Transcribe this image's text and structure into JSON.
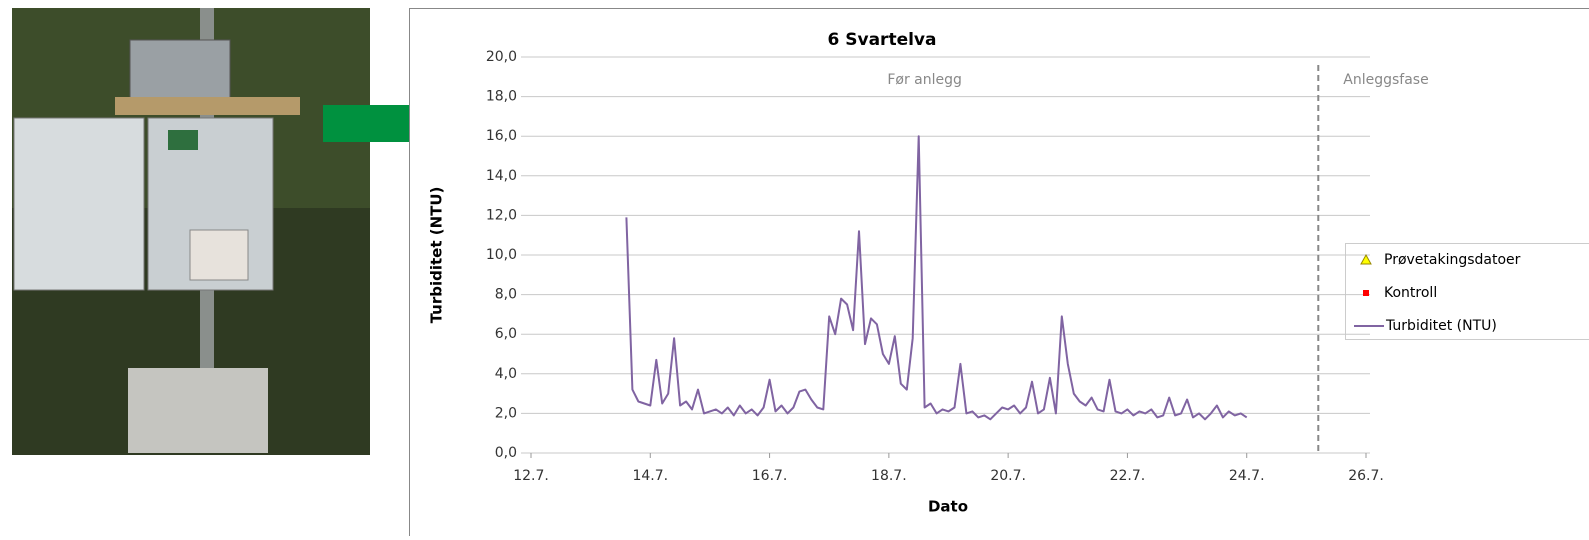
{
  "chart_data": {
    "type": "line",
    "title": "6 Svartelva",
    "xlabel": "Dato",
    "ylabel": "Turbiditet (NTU)",
    "xlim": [
      12,
      26
    ],
    "xticks": [
      {
        "value": 12,
        "label": "12.7."
      },
      {
        "value": 14,
        "label": "14.7."
      },
      {
        "value": 16,
        "label": "16.7."
      },
      {
        "value": 18,
        "label": "18.7."
      },
      {
        "value": 20,
        "label": "20.7."
      },
      {
        "value": 22,
        "label": "22.7."
      },
      {
        "value": 24,
        "label": "24.7."
      },
      {
        "value": 26,
        "label": "26.7."
      }
    ],
    "ylim": [
      0,
      20
    ],
    "yticks": [
      {
        "value": 0,
        "label": "0,0"
      },
      {
        "value": 2,
        "label": "2,0"
      },
      {
        "value": 4,
        "label": "4,0"
      },
      {
        "value": 6,
        "label": "6,0"
      },
      {
        "value": 8,
        "label": "8,0"
      },
      {
        "value": 10,
        "label": "10,0"
      },
      {
        "value": 12,
        "label": "12,0"
      },
      {
        "value": 14,
        "label": "14,0"
      },
      {
        "value": 16,
        "label": "16,0"
      },
      {
        "value": 18,
        "label": "18,0"
      },
      {
        "value": 20,
        "label": "20,0"
      }
    ],
    "grid": true,
    "phases": [
      "Før anlegg",
      "Anleggsfase"
    ],
    "phase_boundary": 25.2,
    "legend": "right",
    "series": [
      {
        "name": "Prøvetakingsdatoer",
        "color": "#ffff00",
        "marker": "triangle",
        "x": [],
        "values": []
      },
      {
        "name": "Kontroll",
        "color": "#ff0000",
        "marker": "square",
        "x": [],
        "values": []
      },
      {
        "name": "Turbiditet (NTU)",
        "color": "#8064a2",
        "marker": "line",
        "x": [
          13.6,
          13.7,
          13.8,
          13.9,
          14.0,
          14.1,
          14.2,
          14.3,
          14.4,
          14.5,
          14.6,
          14.7,
          14.8,
          14.9,
          15.0,
          15.1,
          15.2,
          15.3,
          15.4,
          15.5,
          15.6,
          15.7,
          15.8,
          15.9,
          16.0,
          16.1,
          16.2,
          16.3,
          16.4,
          16.5,
          16.6,
          16.7,
          16.8,
          16.9,
          17.0,
          17.1,
          17.2,
          17.3,
          17.4,
          17.5,
          17.6,
          17.7,
          17.8,
          17.9,
          18.0,
          18.1,
          18.2,
          18.3,
          18.4,
          18.5,
          18.6,
          18.7,
          18.8,
          18.9,
          19.0,
          19.1,
          19.2,
          19.3,
          19.4,
          19.5,
          19.6,
          19.7,
          19.8,
          19.9,
          20.0,
          20.1,
          20.2,
          20.3,
          20.4,
          20.5,
          20.6,
          20.7,
          20.8,
          20.9,
          21.0,
          21.1,
          21.2,
          21.3,
          21.4,
          21.5,
          21.6,
          21.7,
          21.8,
          21.9,
          22.0,
          22.1,
          22.2,
          22.3,
          22.4,
          22.5,
          22.6,
          22.7,
          22.8,
          22.9,
          23.0,
          23.1,
          23.2,
          23.3,
          23.4,
          23.5,
          23.6,
          23.7,
          23.8,
          23.9,
          24.0
        ],
        "values": [
          11.9,
          3.2,
          2.6,
          2.5,
          2.4,
          4.7,
          2.5,
          3.0,
          5.8,
          2.4,
          2.6,
          2.2,
          3.2,
          2.0,
          2.1,
          2.2,
          2.0,
          2.3,
          1.9,
          2.4,
          2.0,
          2.2,
          1.9,
          2.3,
          3.7,
          2.1,
          2.4,
          2.0,
          2.3,
          3.1,
          3.2,
          2.7,
          2.3,
          2.2,
          6.9,
          6.0,
          7.8,
          7.5,
          6.2,
          11.2,
          5.5,
          6.8,
          6.5,
          5.0,
          4.5,
          5.9,
          3.5,
          3.2,
          5.8,
          16.0,
          2.3,
          2.5,
          2.0,
          2.2,
          2.1,
          2.3,
          4.5,
          2.0,
          2.1,
          1.8,
          1.9,
          1.7,
          2.0,
          2.3,
          2.2,
          2.4,
          2.0,
          2.3,
          3.6,
          2.0,
          2.2,
          3.8,
          2.0,
          6.9,
          4.5,
          3.0,
          2.6,
          2.4,
          2.8,
          2.2,
          2.1,
          3.7,
          2.1,
          2.0,
          2.2,
          1.9,
          2.1,
          2.0,
          2.2,
          1.8,
          1.9,
          2.8,
          1.9,
          2.0,
          2.7,
          1.8,
          2.0,
          1.7,
          2.0,
          2.4,
          1.8,
          2.1,
          1.9,
          2.0,
          1.8
        ]
      }
    ]
  }
}
